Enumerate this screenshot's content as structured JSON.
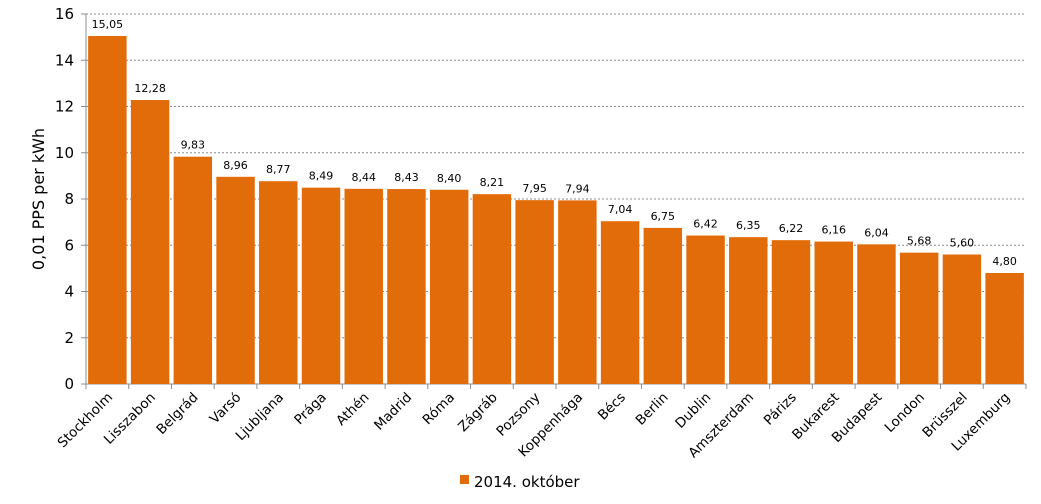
{
  "chart_data": {
    "type": "bar",
    "title": "",
    "xlabel": "",
    "ylabel": "0,01 PPS per kWh",
    "ylim": [
      0,
      16
    ],
    "yticks": [
      0,
      2,
      4,
      6,
      8,
      10,
      12,
      14,
      16
    ],
    "grid": true,
    "legend_position": "bottom",
    "categories": [
      "Stockholm",
      "Lisszabon",
      "Belgrád",
      "Varsó",
      "Ljubljana",
      "Prága",
      "Athén",
      "Madrid",
      "Róma",
      "Zágráb",
      "Pozsony",
      "Koppenhága",
      "Bécs",
      "Berlin",
      "Dublin",
      "Amszterdam",
      "Párizs",
      "Bukarest",
      "Budapest",
      "London",
      "Brüsszel",
      "Luxemburg"
    ],
    "series": [
      {
        "name": "2014. október",
        "color": "#E36C0A",
        "values": [
          15.05,
          12.28,
          9.83,
          8.96,
          8.77,
          8.49,
          8.44,
          8.43,
          8.4,
          8.21,
          7.95,
          7.94,
          7.04,
          6.75,
          6.42,
          6.35,
          6.22,
          6.16,
          6.04,
          5.68,
          5.6,
          4.8
        ],
        "labels": [
          "15,05",
          "12,28",
          "9,83",
          "8,96",
          "8,77",
          "8,49",
          "8,44",
          "8,43",
          "8,40",
          "8,21",
          "7,95",
          "7,94",
          "7,04",
          "6,75",
          "6,42",
          "6,35",
          "6,22",
          "6,16",
          "6,04",
          "5,68",
          "5,60",
          "4,80"
        ]
      }
    ]
  }
}
